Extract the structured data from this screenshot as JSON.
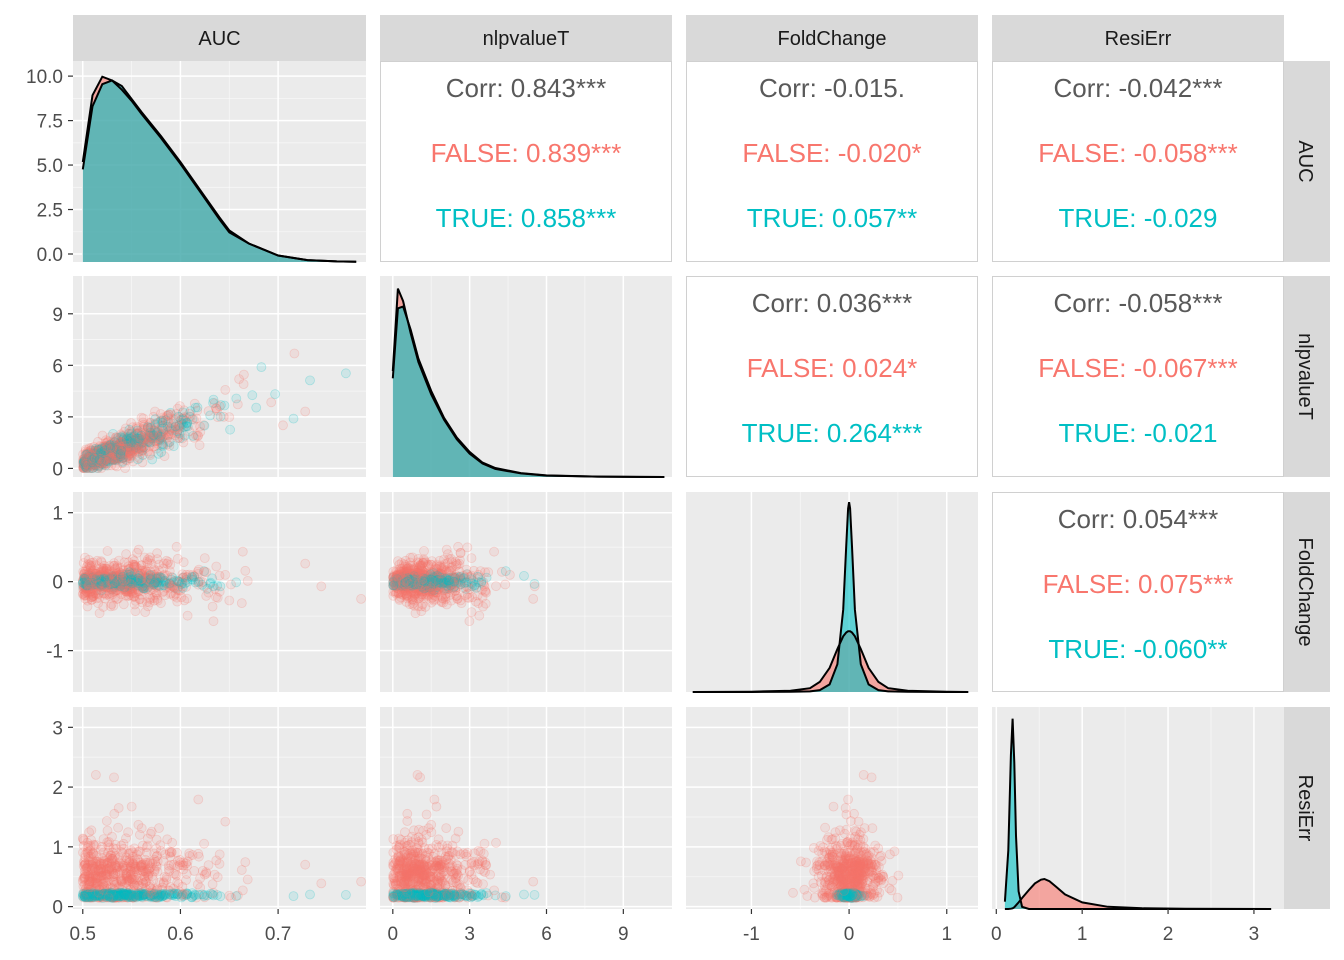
{
  "chart_data": {
    "type": "scatter",
    "title": "",
    "colors": {
      "FALSE": "#F8766D",
      "TRUE": "#00BFC4",
      "overall": "#595959",
      "density_line": "#000000"
    },
    "panel_style": {
      "background": "#EBEBEB",
      "strip": "#D9D9D9",
      "grid": "#FFFFFF"
    },
    "variables": [
      "AUC",
      "nlpvalueT",
      "FoldChange",
      "ResiErr"
    ],
    "axes": {
      "x": [
        {
          "var": "AUC",
          "range": [
            0.49,
            0.79
          ],
          "ticks": [
            0.5,
            0.6,
            0.7
          ],
          "tick_labels": [
            "0.5",
            "0.6",
            "0.7"
          ]
        },
        {
          "var": "nlpvalueT",
          "range": [
            -0.5,
            10.9
          ],
          "ticks": [
            0,
            3,
            6,
            9
          ],
          "tick_labels": [
            "0",
            "3",
            "6",
            "9"
          ]
        },
        {
          "var": "FoldChange",
          "range": [
            -1.67,
            1.32
          ],
          "ticks": [
            -1,
            0,
            1
          ],
          "tick_labels": [
            "-1",
            "0",
            "1"
          ]
        },
        {
          "var": "ResiErr",
          "range": [
            -0.05,
            3.35
          ],
          "ticks": [
            0,
            1,
            2,
            3
          ],
          "tick_labels": [
            "0",
            "1",
            "2",
            "3"
          ]
        }
      ],
      "y": [
        {
          "var": "AUC",
          "range": [
            -0.45,
            10.85
          ],
          "ticks": [
            0,
            2.5,
            5,
            7.5,
            10
          ],
          "tick_labels": [
            "0.0",
            "2.5",
            "5.0",
            "7.5",
            "10.0"
          ]
        },
        {
          "var": "nlpvalueT",
          "range": [
            -0.5,
            11.2
          ],
          "ticks": [
            0,
            3,
            6,
            9
          ],
          "tick_labels": [
            "0",
            "3",
            "6",
            "9"
          ]
        },
        {
          "var": "FoldChange",
          "range": [
            -1.6,
            1.3
          ],
          "ticks": [
            -1,
            0,
            1
          ],
          "tick_labels": [
            "-1",
            "0",
            "1"
          ]
        },
        {
          "var": "ResiErr",
          "range": [
            -0.04,
            3.34
          ],
          "ticks": [
            0,
            1,
            2,
            3
          ],
          "tick_labels": [
            "0",
            "1",
            "2",
            "3"
          ]
        }
      ]
    },
    "correlations": [
      {
        "x": "nlpvalueT",
        "y": "AUC",
        "overall": "Corr: 0.843***",
        "FALSE": "FALSE: 0.839***",
        "TRUE": "TRUE: 0.858***"
      },
      {
        "x": "FoldChange",
        "y": "AUC",
        "overall": "Corr: -0.015.",
        "FALSE": "FALSE: -0.020*",
        "TRUE": "TRUE: 0.057**"
      },
      {
        "x": "ResiErr",
        "y": "AUC",
        "overall": "Corr: -0.042***",
        "FALSE": "FALSE: -0.058***",
        "TRUE": "TRUE: -0.029"
      },
      {
        "x": "FoldChange",
        "y": "nlpvalueT",
        "overall": "Corr: 0.036***",
        "FALSE": "FALSE: 0.024*",
        "TRUE": "TRUE: 0.264***"
      },
      {
        "x": "ResiErr",
        "y": "nlpvalueT",
        "overall": "Corr: -0.058***",
        "FALSE": "FALSE: -0.067***",
        "TRUE": "TRUE: -0.021"
      },
      {
        "x": "ResiErr",
        "y": "FoldChange",
        "overall": "Corr: 0.054***",
        "FALSE": "FALSE: 0.075***",
        "TRUE": "TRUE: -0.060**"
      }
    ],
    "densities": [
      {
        "var": "AUC",
        "x": [
          0.5,
          0.51,
          0.52,
          0.53,
          0.54,
          0.55,
          0.56,
          0.58,
          0.6,
          0.62,
          0.64,
          0.65,
          0.67,
          0.7,
          0.73,
          0.76,
          0.78
        ],
        "FALSE": [
          5.4,
          9.0,
          10.0,
          9.8,
          9.3,
          8.7,
          8.0,
          6.7,
          5.3,
          3.8,
          2.3,
          1.6,
          1.0,
          0.35,
          0.1,
          0.03,
          0.01
        ],
        "TRUE": [
          5.0,
          8.4,
          9.6,
          9.8,
          9.5,
          8.8,
          8.1,
          6.8,
          5.4,
          3.9,
          2.4,
          1.7,
          1.0,
          0.35,
          0.1,
          0.03,
          0.01
        ],
        "overall": [
          5.2,
          9.2,
          9.9,
          9.8,
          9.5,
          8.8,
          8.1,
          6.8,
          5.4,
          3.9,
          2.4,
          1.7,
          1.0,
          0.35,
          0.1,
          0.03,
          0.01
        ]
      },
      {
        "var": "nlpvalueT",
        "x": [
          0,
          0.2,
          0.4,
          0.7,
          1.0,
          1.5,
          2.0,
          2.5,
          3.0,
          3.5,
          4.0,
          5.0,
          6.0,
          8.0,
          10.6
        ],
        "FALSE": [
          5.9,
          10.5,
          9.8,
          8.0,
          6.4,
          4.6,
          3.2,
          2.1,
          1.3,
          0.75,
          0.45,
          0.2,
          0.08,
          0.02,
          0.0
        ],
        "TRUE": [
          5.5,
          9.4,
          9.5,
          8.2,
          6.6,
          4.8,
          3.3,
          2.2,
          1.4,
          0.8,
          0.5,
          0.22,
          0.09,
          0.02,
          0.0
        ],
        "overall": [
          5.9,
          10.4,
          9.8,
          8.0,
          6.4,
          4.6,
          3.2,
          2.1,
          1.3,
          0.75,
          0.45,
          0.2,
          0.08,
          0.02,
          0.0
        ]
      },
      {
        "var": "FoldChange",
        "x": [
          -1.6,
          -1.0,
          -0.6,
          -0.4,
          -0.3,
          -0.2,
          -0.12,
          -0.06,
          -0.03,
          -0.01,
          0,
          0.01,
          0.03,
          0.06,
          0.12,
          0.2,
          0.3,
          0.4,
          0.6,
          1.0,
          1.22
        ],
        "FALSE": [
          0.0,
          0.02,
          0.1,
          0.3,
          0.8,
          1.9,
          3.4,
          4.4,
          4.7,
          4.8,
          4.8,
          4.8,
          4.7,
          4.4,
          3.4,
          1.9,
          0.8,
          0.3,
          0.1,
          0.02,
          0.0
        ],
        "TRUE": [
          0.0,
          0.0,
          0.02,
          0.05,
          0.15,
          0.6,
          2.2,
          6.5,
          11.5,
          14.5,
          15.0,
          14.5,
          11.5,
          6.5,
          2.2,
          0.6,
          0.15,
          0.05,
          0.02,
          0.0,
          0.0
        ],
        "overall": [
          0.0,
          0.02,
          0.1,
          0.3,
          0.8,
          1.9,
          3.6,
          7.0,
          12.0,
          14.5,
          15.0,
          14.5,
          12.0,
          7.0,
          3.6,
          1.9,
          0.8,
          0.3,
          0.1,
          0.02,
          0.0
        ]
      },
      {
        "var": "ResiErr",
        "x": [
          0.1,
          0.14,
          0.17,
          0.19,
          0.21,
          0.23,
          0.26,
          0.3,
          0.38,
          0.45,
          0.52,
          0.56,
          0.62,
          0.7,
          0.8,
          1.0,
          1.3,
          1.7,
          2.2,
          3.2
        ],
        "FALSE": [
          0.0,
          0.0,
          0.02,
          0.05,
          0.12,
          0.25,
          0.45,
          0.75,
          1.3,
          1.75,
          2.0,
          2.05,
          1.9,
          1.5,
          1.0,
          0.45,
          0.15,
          0.05,
          0.02,
          0.0
        ],
        "TRUE": [
          0.5,
          4.0,
          10.5,
          13.0,
          10.0,
          5.0,
          1.2,
          0.15,
          0.0,
          0.0,
          0.0,
          0.0,
          0.0,
          0.0,
          0.0,
          0.0,
          0.0,
          0.0,
          0.0,
          0.0
        ],
        "overall": [
          0.5,
          4.0,
          10.5,
          13.0,
          10.1,
          5.2,
          1.6,
          0.9,
          1.3,
          1.75,
          2.0,
          2.05,
          1.9,
          1.5,
          1.0,
          0.45,
          0.15,
          0.05,
          0.02,
          0.0
        ]
      }
    ],
    "density_ymax": [
      10.85,
      11.2,
      15.8,
      13.8
    ],
    "scatter_description": "Lower-triangle panels are semi-transparent scatter plots of the same pairs colored by group (FALSE, TRUE).",
    "legend": "none"
  }
}
